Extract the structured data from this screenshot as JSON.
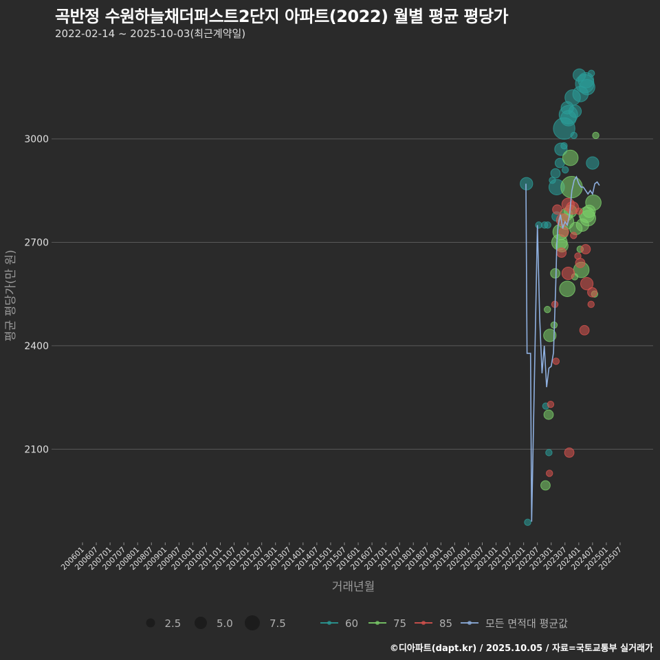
{
  "header": {
    "title": "곡반정 수원하늘채더퍼스트2단지 아파트(2022) 월별 평균 평당가",
    "subtitle": "2022-02-14 ~ 2025-10-03(최근계약일)"
  },
  "footer": {
    "credit": "©디아파트(dapt.kr) / 2025.10.05 / 자료=국토교통부 실거래가"
  },
  "colors": {
    "background": "#2a2a2a",
    "grid": "#5a5a5a",
    "s60": "#2a9d99",
    "s75": "#7ccf6a",
    "s85": "#d9534f",
    "avg": "#8fb0e0"
  },
  "legend": {
    "size_labels": [
      "2.5",
      "5.0",
      "7.5"
    ],
    "color_labels": [
      "60",
      "75",
      "85",
      "모든 면적대 평균값"
    ]
  },
  "chart_data": {
    "type": "scatter",
    "title": "곡반정 수원하늘채더퍼스트2단지 아파트(2022) 월별 평균 평당가",
    "subtitle": "2022-02-14 ~ 2025-10-03(최근계약일)",
    "xlabel": "거래년월",
    "ylabel": "평균 평당가(만 원)",
    "ylim": [
      1880,
      3230
    ],
    "yticks": [
      2100,
      2400,
      2700,
      3000
    ],
    "xticks": [
      "200601",
      "200607",
      "200701",
      "200707",
      "200801",
      "200807",
      "200901",
      "200907",
      "201001",
      "201007",
      "201101",
      "201107",
      "201201",
      "201207",
      "201301",
      "201307",
      "201401",
      "201407",
      "201501",
      "201507",
      "201601",
      "201607",
      "201701",
      "201707",
      "201801",
      "201807",
      "201901",
      "201907",
      "202001",
      "202007",
      "202101",
      "202107",
      "202201",
      "202207",
      "202301",
      "202307",
      "202401",
      "202407",
      "202501",
      "202507"
    ],
    "grid": true,
    "legend_position": "bottom",
    "size_legend": [
      2.5,
      5.0,
      7.5
    ],
    "series": [
      {
        "name": "60",
        "points": [
          [
            "202202",
            2870,
            3
          ],
          [
            "202203",
            1888,
            1
          ],
          [
            "202207",
            2750,
            1
          ],
          [
            "202210",
            2750,
            1
          ],
          [
            "202211",
            2225,
            1
          ],
          [
            "202211",
            2750,
            1
          ],
          [
            "202212",
            2090,
            1
          ],
          [
            "202302",
            2880,
            1
          ],
          [
            "202303",
            2775,
            2
          ],
          [
            "202303",
            2900,
            2
          ],
          [
            "202304",
            2860,
            4
          ],
          [
            "202305",
            2970,
            3
          ],
          [
            "202305",
            2930,
            2
          ],
          [
            "202306",
            2980,
            1
          ],
          [
            "202307",
            2910,
            1
          ],
          [
            "202307",
            3030,
            6
          ],
          [
            "202308",
            3070,
            5
          ],
          [
            "202308",
            3090,
            3
          ],
          [
            "202309",
            3060,
            4
          ],
          [
            "202310",
            3120,
            4
          ],
          [
            "202311",
            3010,
            1
          ],
          [
            "202312",
            3080,
            3
          ],
          [
            "202401",
            3185,
            3
          ],
          [
            "202402",
            3130,
            4
          ],
          [
            "202403",
            3160,
            5
          ],
          [
            "202404",
            3170,
            4
          ],
          [
            "202405",
            3150,
            4
          ],
          [
            "202406",
            3190,
            1
          ],
          [
            "202407",
            2930,
            3
          ]
        ]
      },
      {
        "name": "75",
        "points": [
          [
            "202211",
            1995,
            2
          ],
          [
            "202211",
            2505,
            1
          ],
          [
            "202212",
            2200,
            2
          ],
          [
            "202301",
            2430,
            3
          ],
          [
            "202302",
            2460,
            1
          ],
          [
            "202303",
            2610,
            2
          ],
          [
            "202304",
            2700,
            4
          ],
          [
            "202305",
            2730,
            4
          ],
          [
            "202306",
            2690,
            3
          ],
          [
            "202307",
            2760,
            4
          ],
          [
            "202308",
            2565,
            4
          ],
          [
            "202308",
            2780,
            3
          ],
          [
            "202309",
            2945,
            4
          ],
          [
            "202310",
            2860,
            6
          ],
          [
            "202310",
            2790,
            3
          ],
          [
            "202311",
            2600,
            1
          ],
          [
            "202312",
            2740,
            3
          ],
          [
            "202401",
            2680,
            1
          ],
          [
            "202402",
            2620,
            4
          ],
          [
            "202403",
            2750,
            3
          ],
          [
            "202404",
            2780,
            4
          ],
          [
            "202405",
            2770,
            4
          ],
          [
            "202406",
            2790,
            3
          ],
          [
            "202407",
            2815,
            4
          ],
          [
            "202408",
            2550,
            1
          ],
          [
            "202409",
            3010,
            1
          ]
        ]
      },
      {
        "name": "85",
        "points": [
          [
            "202212",
            2030,
            1
          ],
          [
            "202301",
            2230,
            1
          ],
          [
            "202302",
            2520,
            1
          ],
          [
            "202303",
            2355,
            1
          ],
          [
            "202304",
            2795,
            2
          ],
          [
            "202305",
            2670,
            2
          ],
          [
            "202306",
            2765,
            3
          ],
          [
            "202307",
            2730,
            2
          ],
          [
            "202308",
            2810,
            3
          ],
          [
            "202309",
            2090,
            2
          ],
          [
            "202309",
            2610,
            3
          ],
          [
            "202310",
            2800,
            3
          ],
          [
            "202311",
            2720,
            1
          ],
          [
            "202312",
            2660,
            1
          ],
          [
            "202401",
            2790,
            1
          ],
          [
            "202402",
            2640,
            2
          ],
          [
            "202403",
            2445,
            2
          ],
          [
            "202404",
            2680,
            2
          ],
          [
            "202405",
            2580,
            3
          ],
          [
            "202406",
            2520,
            1
          ],
          [
            "202407",
            2555,
            2
          ]
        ]
      }
    ],
    "average_line": {
      "name": "모든 면적대 평균값",
      "x": [
        "202202",
        "202202",
        "202203",
        "202204",
        "202204",
        "202207",
        "202208",
        "202209",
        "202210",
        "202211",
        "202212",
        "202301",
        "202302",
        "202303",
        "202303",
        "202304",
        "202305",
        "202306",
        "202307",
        "202308",
        "202309",
        "202310",
        "202311",
        "202312",
        "202401",
        "202402",
        "202403",
        "202404",
        "202405",
        "202406",
        "202407",
        "202408",
        "202409",
        "202410"
      ],
      "y": [
        2870,
        2378,
        2378,
        2378,
        1890,
        2750,
        2480,
        2320,
        2400,
        2280,
        2335,
        2340,
        2380,
        2580,
        2700,
        2750,
        2780,
        2740,
        2760,
        2750,
        2780,
        2850,
        2880,
        2890,
        2870,
        2860,
        2860,
        2850,
        2840,
        2850,
        2840,
        2870,
        2875,
        2865
      ]
    }
  }
}
